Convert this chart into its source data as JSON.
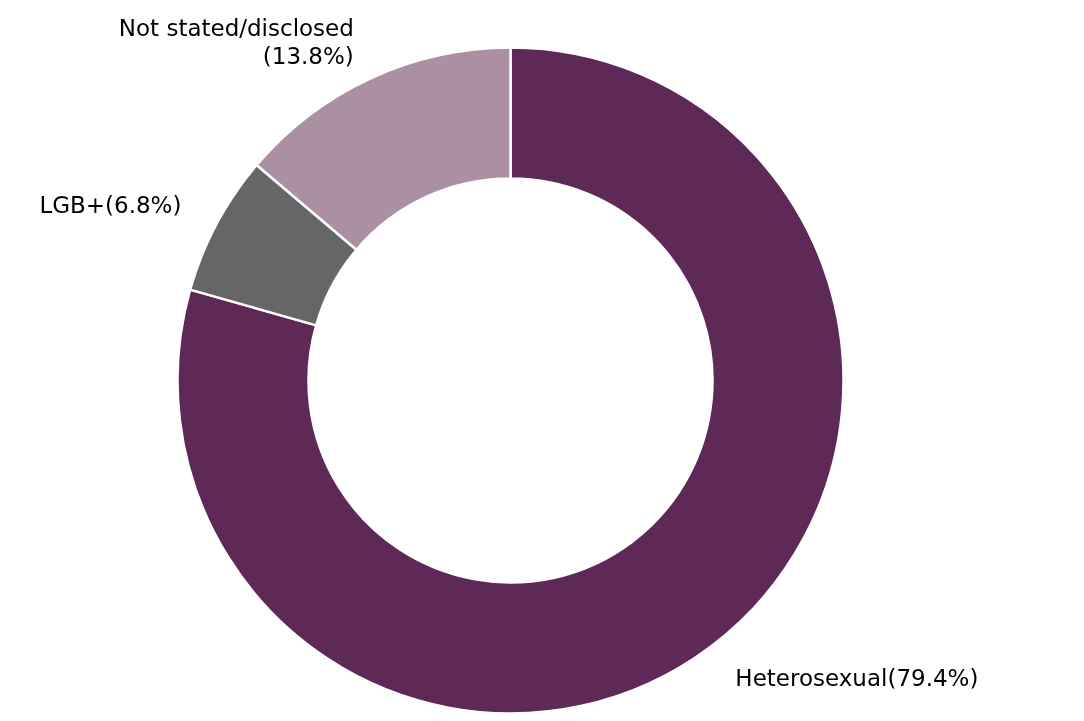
{
  "chart_data": {
    "type": "donut",
    "categories": [
      "Heterosexual",
      "LGB+",
      "Not stated/disclosed"
    ],
    "values": [
      79.4,
      6.8,
      13.8
    ],
    "value_labels": [
      "(79.4%)",
      "(6.8%)",
      "(13.8%)"
    ],
    "colors": [
      "#5e2857",
      "#666666",
      "#ab8fa2"
    ]
  }
}
